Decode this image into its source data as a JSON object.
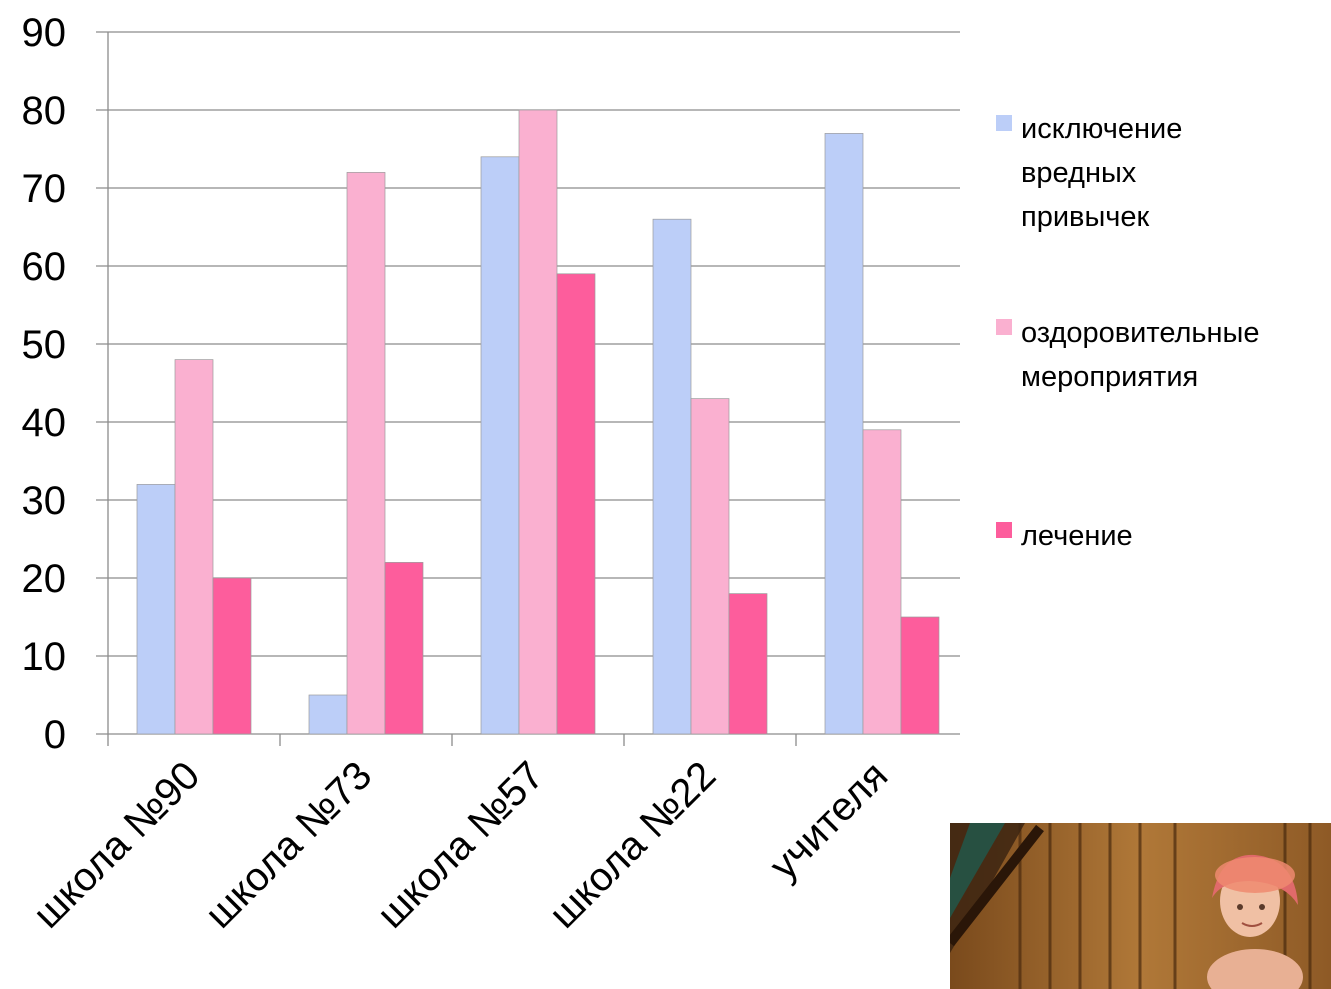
{
  "chart_data": {
    "type": "bar",
    "categories": [
      "школа №90",
      "школа №73",
      "школа №57",
      "школа №22",
      "учителя"
    ],
    "series": [
      {
        "name": "исключение вредных привычек",
        "values": [
          32,
          5,
          74,
          66,
          77
        ],
        "color": "#bccef8"
      },
      {
        "name": "оздоровительные мероприятия",
        "values": [
          48,
          72,
          80,
          43,
          39
        ],
        "color": "#fab0d0"
      },
      {
        "name": "лечение",
        "values": [
          20,
          22,
          59,
          18,
          15
        ],
        "color": "#fd5d9c"
      }
    ],
    "ylim": [
      0,
      90
    ],
    "yticks": [
      0,
      10,
      20,
      30,
      40,
      50,
      60,
      70,
      80,
      90
    ],
    "grid": true,
    "legend_position": "right"
  },
  "legend": {
    "items": [
      {
        "lines": [
          "исключение",
          "вредных",
          "привычек"
        ]
      },
      {
        "lines": [
          "оздоровительные",
          "мероприятия"
        ]
      },
      {
        "lines": [
          "лечение"
        ]
      }
    ]
  },
  "photo": {
    "icon": "child-in-sauna-photo"
  }
}
